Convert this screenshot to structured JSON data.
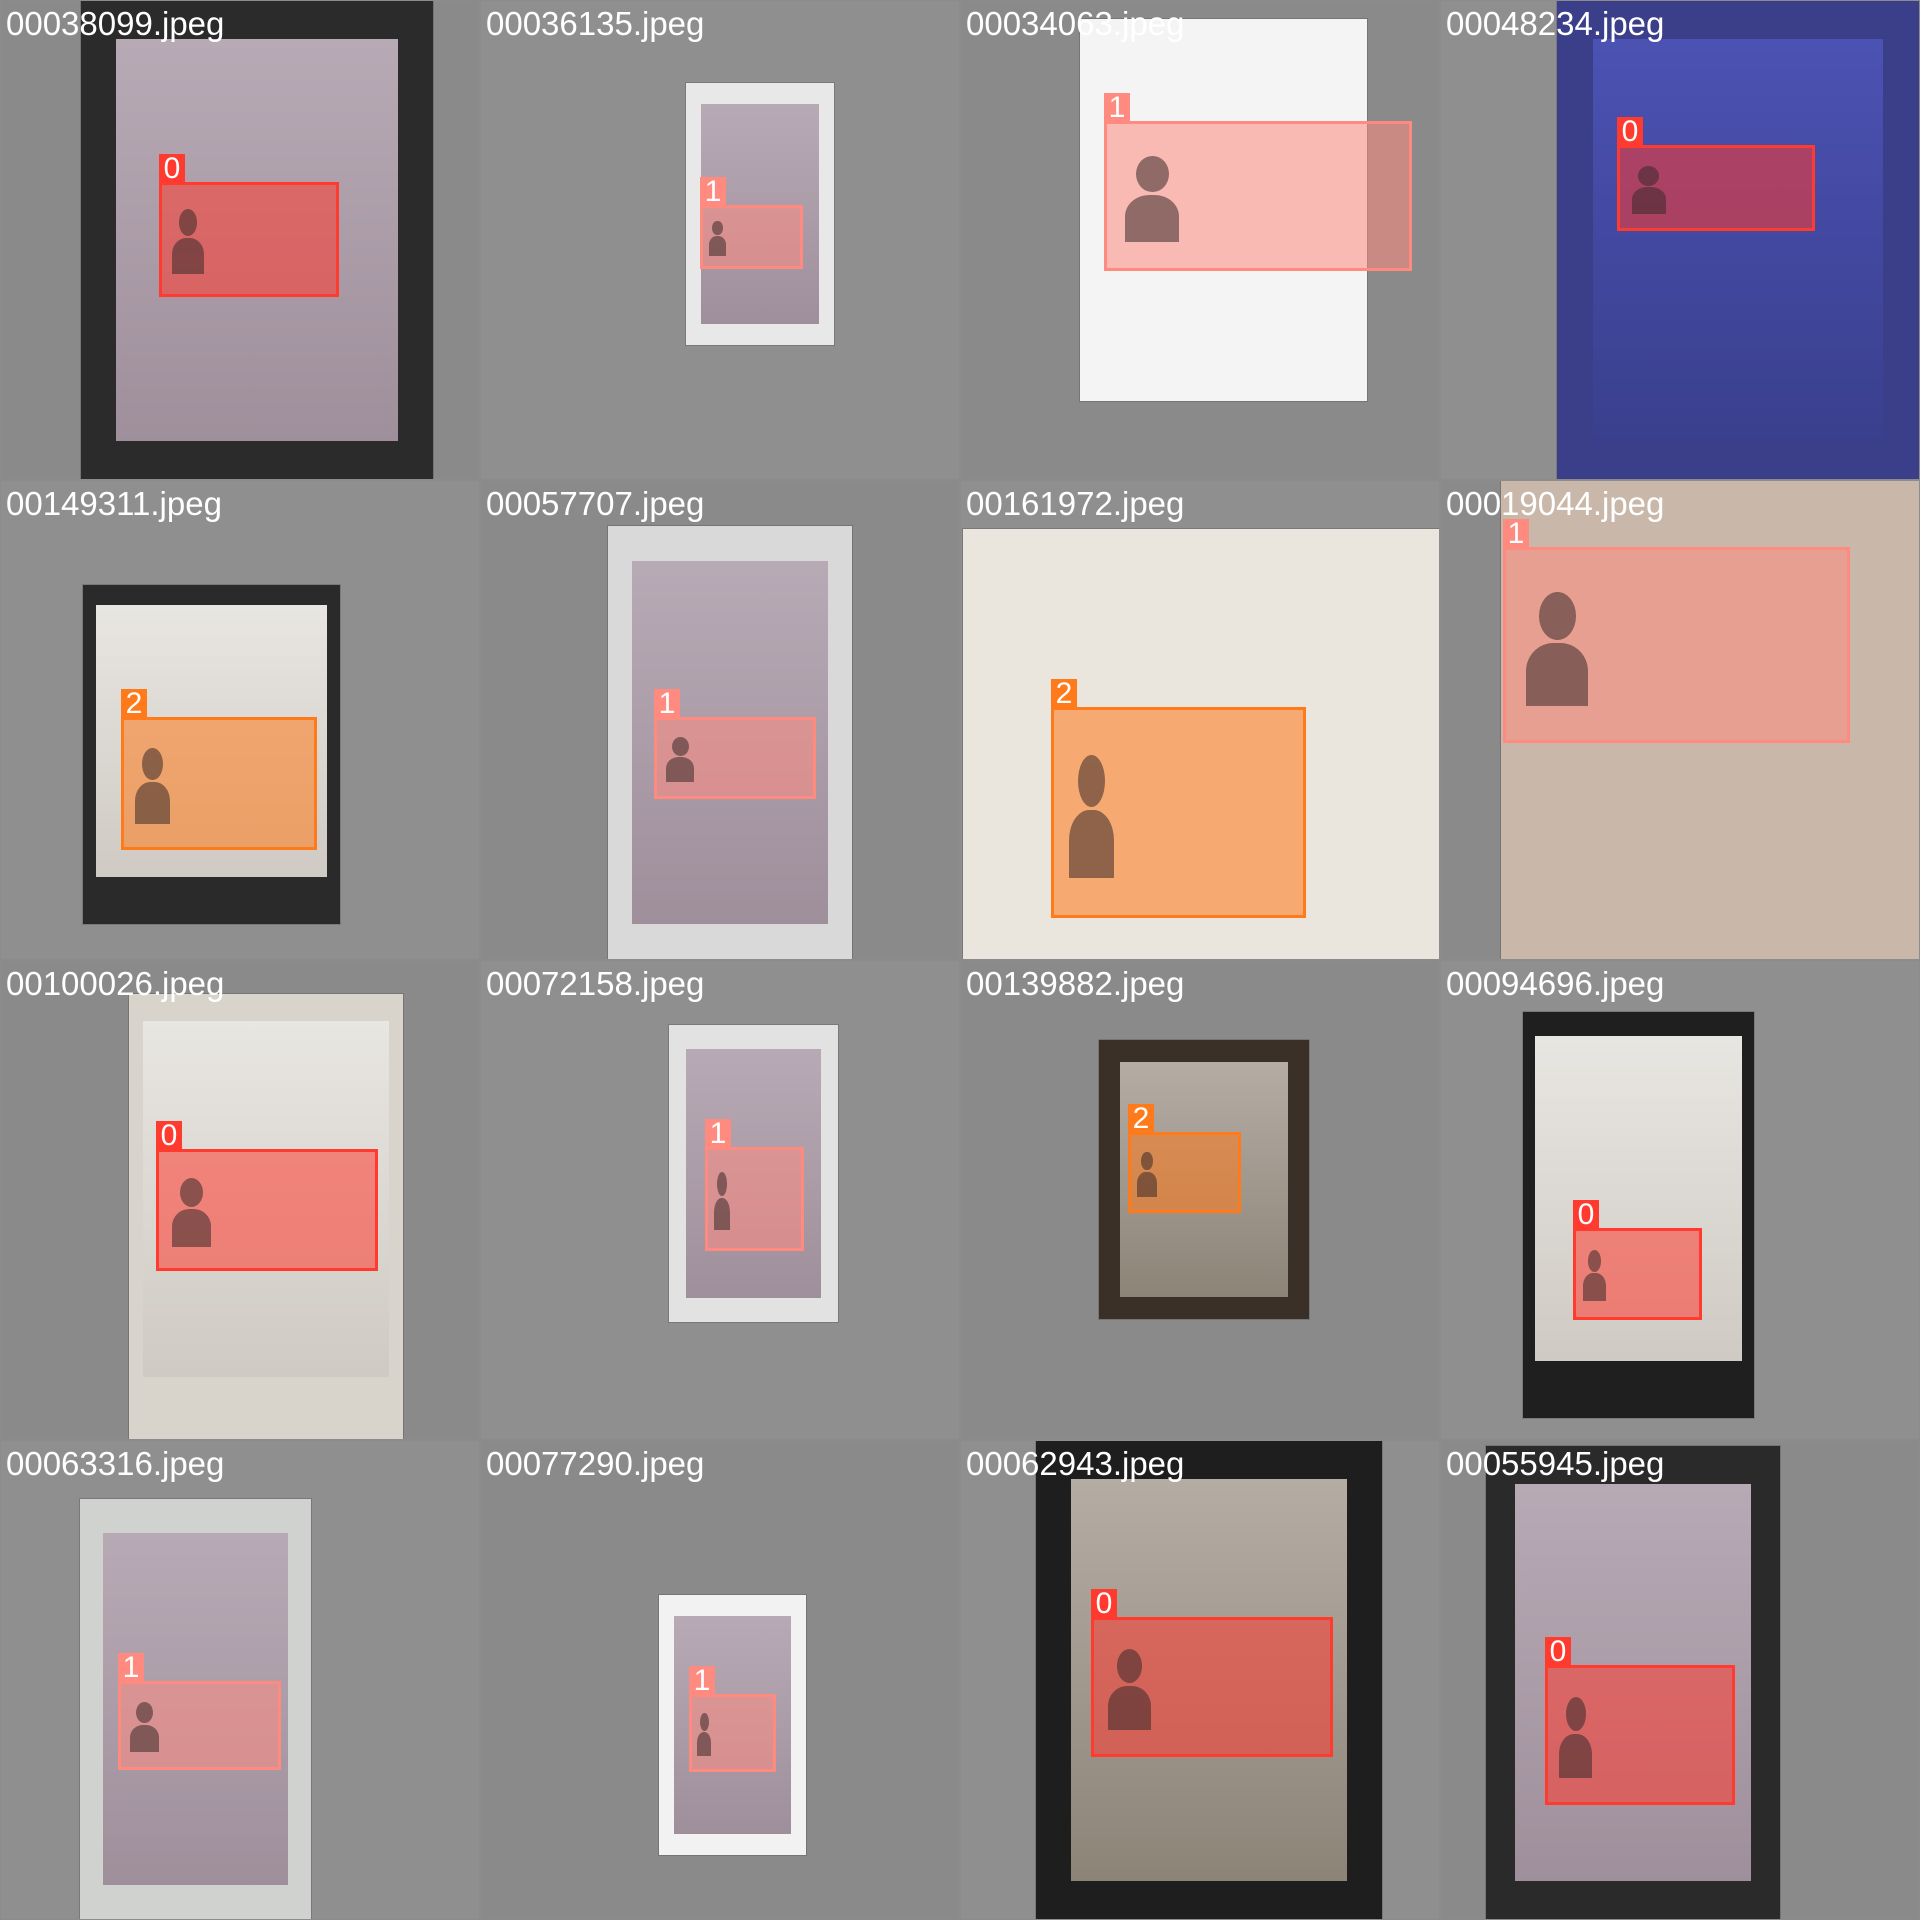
{
  "colors": {
    "class_0": "#ff3b30",
    "class_1": "#ff8a80",
    "class_2": "#ff7a1a",
    "background": "#8c8c8c"
  },
  "tiles": [
    {
      "filename": "00038099.jpeg",
      "scene": "phone-in-hand",
      "photo_bg": "#2b2b2b",
      "detections": [
        {
          "cls": "0"
        }
      ]
    },
    {
      "filename": "00036135.jpeg",
      "scene": "phone-small",
      "photo_bg": "#e8e8e8",
      "detections": [
        {
          "cls": "1"
        }
      ]
    },
    {
      "filename": "00034063.jpeg",
      "scene": "paper-card",
      "photo_bg": "#f4f4f4",
      "detections": [
        {
          "cls": "1"
        }
      ]
    },
    {
      "filename": "00048234.jpeg",
      "scene": "phone-in-hand-blue",
      "photo_bg": "#3b3f8a",
      "detections": [
        {
          "cls": "0"
        }
      ]
    },
    {
      "filename": "00149311.jpeg",
      "scene": "monitor",
      "photo_bg": "#2a2a2a",
      "detections": [
        {
          "cls": "2"
        }
      ]
    },
    {
      "filename": "00057707.jpeg",
      "scene": "phone",
      "photo_bg": "#d9d9d9",
      "detections": [
        {
          "cls": "1"
        }
      ]
    },
    {
      "filename": "00161972.jpeg",
      "scene": "passport",
      "photo_bg": "#eae5dd",
      "detections": [
        {
          "cls": "2"
        }
      ]
    },
    {
      "filename": "00019044.jpeg",
      "scene": "card-closeup",
      "photo_bg": "#c9b8a9",
      "detections": [
        {
          "cls": "1"
        }
      ]
    },
    {
      "filename": "00100026.jpeg",
      "scene": "monitor-frame",
      "photo_bg": "#d8d4cc",
      "detections": [
        {
          "cls": "0"
        }
      ]
    },
    {
      "filename": "00072158.jpeg",
      "scene": "phone",
      "photo_bg": "#e2e2e2",
      "detections": [
        {
          "cls": "1"
        }
      ]
    },
    {
      "filename": "00139882.jpeg",
      "scene": "dark-phone",
      "photo_bg": "#3a3028",
      "detections": [
        {
          "cls": "2"
        }
      ]
    },
    {
      "filename": "00094696.jpeg",
      "scene": "monitor-stand",
      "photo_bg": "#1f1f1f",
      "detections": [
        {
          "cls": "0"
        }
      ]
    },
    {
      "filename": "00063316.jpeg",
      "scene": "phone",
      "photo_bg": "#cfd2cf",
      "detections": [
        {
          "cls": "1"
        }
      ]
    },
    {
      "filename": "00077290.jpeg",
      "scene": "phone-small",
      "photo_bg": "#f2f2f2",
      "detections": [
        {
          "cls": "1"
        }
      ]
    },
    {
      "filename": "00062943.jpeg",
      "scene": "dark-phone-large",
      "photo_bg": "#1e1e1e",
      "detections": [
        {
          "cls": "0"
        }
      ]
    },
    {
      "filename": "00055945.jpeg",
      "scene": "phone-large",
      "photo_bg": "#2a2a2a",
      "detections": [
        {
          "cls": "0"
        }
      ]
    }
  ]
}
